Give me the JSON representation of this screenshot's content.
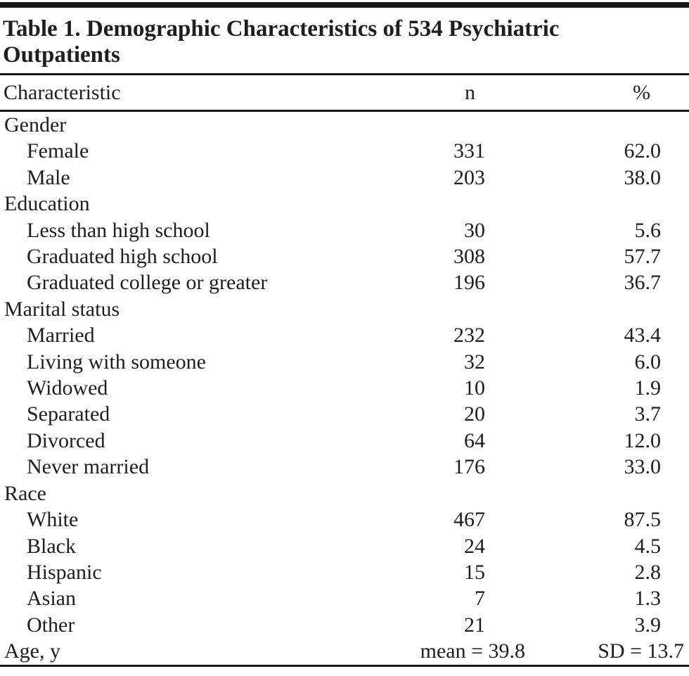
{
  "table": {
    "title": "Table 1. Demographic Characteristics of 534 Psychiatric Outpatients",
    "columns": {
      "characteristic": "Characteristic",
      "n": "n",
      "percent": "%"
    },
    "rows": [
      {
        "type": "section",
        "label": "Gender"
      },
      {
        "type": "item",
        "label": "Female",
        "n": "331",
        "percent": "62.0"
      },
      {
        "type": "item",
        "label": "Male",
        "n": "203",
        "percent": "38.0"
      },
      {
        "type": "section",
        "label": "Education"
      },
      {
        "type": "item",
        "label": "Less than high school",
        "n": "30",
        "percent": "5.6"
      },
      {
        "type": "item",
        "label": "Graduated high school",
        "n": "308",
        "percent": "57.7"
      },
      {
        "type": "item",
        "label": "Graduated college or greater",
        "n": "196",
        "percent": "36.7"
      },
      {
        "type": "section",
        "label": "Marital status"
      },
      {
        "type": "item",
        "label": "Married",
        "n": "232",
        "percent": "43.4"
      },
      {
        "type": "item",
        "label": "Living with someone",
        "n": "32",
        "percent": "6.0"
      },
      {
        "type": "item",
        "label": "Widowed",
        "n": "10",
        "percent": "1.9"
      },
      {
        "type": "item",
        "label": "Separated",
        "n": "20",
        "percent": "3.7"
      },
      {
        "type": "item",
        "label": "Divorced",
        "n": "64",
        "percent": "12.0"
      },
      {
        "type": "item",
        "label": "Never married",
        "n": "176",
        "percent": "33.0"
      },
      {
        "type": "section",
        "label": "Race"
      },
      {
        "type": "item",
        "label": "White",
        "n": "467",
        "percent": "87.5"
      },
      {
        "type": "item",
        "label": "Black",
        "n": "24",
        "percent": "4.5"
      },
      {
        "type": "item",
        "label": "Hispanic",
        "n": "15",
        "percent": "2.8"
      },
      {
        "type": "item",
        "label": "Asian",
        "n": "7",
        "percent": "1.3"
      },
      {
        "type": "item",
        "label": "Other",
        "n": "21",
        "percent": "3.9"
      },
      {
        "type": "summary",
        "label": "Age, y",
        "n": "mean = 39.8",
        "percent": "SD = 13.7"
      }
    ]
  },
  "colors": {
    "background": "#ffffff",
    "text": "#1e1e1e",
    "rule": "#161616"
  }
}
